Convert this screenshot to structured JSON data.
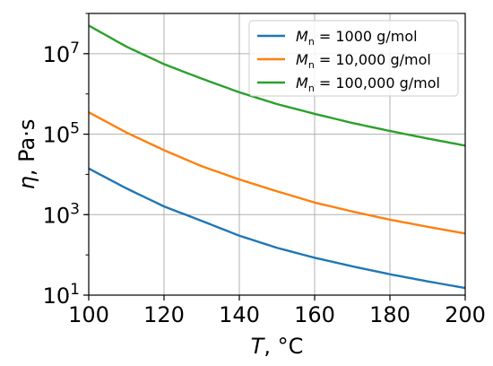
{
  "chart_data": {
    "type": "line",
    "xlabel": {
      "var": "T",
      "rest": ", °C"
    },
    "ylabel": {
      "var": "η",
      "rest": ", Pa·s"
    },
    "xlim": [
      100,
      200
    ],
    "ylim": [
      10,
      100000000.0
    ],
    "yscale": "log",
    "grid": true,
    "legend_position": "top-right",
    "x_ticks": [
      100,
      120,
      140,
      160,
      180,
      200
    ],
    "y_ticks": [
      {
        "value": 10,
        "base": "10",
        "exp": "1"
      },
      {
        "value": 1000,
        "base": "10",
        "exp": "3"
      },
      {
        "value": 100000,
        "base": "10",
        "exp": "5"
      },
      {
        "value": 10000000,
        "base": "10",
        "exp": "7"
      }
    ],
    "x": [
      100,
      110,
      120,
      130,
      140,
      150,
      160,
      170,
      180,
      190,
      200
    ],
    "series": [
      {
        "legend_var": "M",
        "legend_sub": "n",
        "legend_rest": " = 1000 g/mol",
        "color": "#1f77b4",
        "values": [
          14000,
          4500,
          1600,
          700,
          300,
          150,
          85,
          52,
          33,
          22,
          15
        ]
      },
      {
        "legend_var": "M",
        "legend_sub": "n",
        "legend_rest": " = 10,000 g/mol",
        "color": "#ff7f0e",
        "values": [
          350000,
          110000,
          40000,
          16000,
          7500,
          3800,
          2000,
          1200,
          750,
          500,
          340
        ]
      },
      {
        "legend_var": "M",
        "legend_sub": "n",
        "legend_rest": " = 100,000 g/mol",
        "color": "#2ca02c",
        "values": [
          50000000,
          15000000,
          5500000,
          2400000,
          1100000,
          560000,
          320000,
          190000,
          120000,
          78000,
          52000
        ]
      }
    ]
  }
}
